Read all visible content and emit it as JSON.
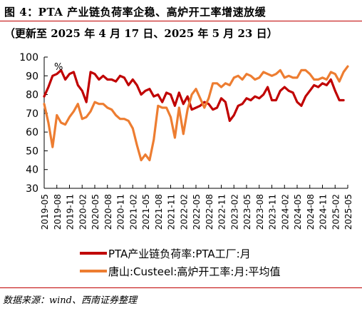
{
  "title": "图 4：PTA 产业链负荷率企稳、高炉开工率增速放缓",
  "subtitle": "（更新至 2025 年 4 月 17 日、2025 年 5 月 23 日）",
  "source": "数据来源：wind、西南证券整理",
  "colors": {
    "series1": "#c00000",
    "series2": "#ed7d31",
    "accent": "#c00000"
  },
  "chart_data": {
    "type": "line",
    "unit_label": "%",
    "ylim": [
      30,
      100
    ],
    "yticks": [
      30,
      40,
      50,
      60,
      70,
      80,
      90,
      100
    ],
    "x_start": "2019-05",
    "x_end": "2025-05",
    "xticks": [
      "2019-05",
      "2019-08",
      "2019-11",
      "2020-02",
      "2020-05",
      "2020-08",
      "2020-11",
      "2021-02",
      "2021-05",
      "2021-08",
      "2021-11",
      "2022-02",
      "2022-05",
      "2022-08",
      "2022-11",
      "2023-02",
      "2023-05",
      "2023-08",
      "2023-11",
      "2024-02",
      "2024-05",
      "2024-08",
      "2024-11",
      "2025-02",
      "2025-05"
    ],
    "grid": false,
    "legend_position": "bottom",
    "series": [
      {
        "name": "PTA产业链负荷率:PTA工厂:月",
        "color": "#c00000",
        "points": [
          [
            "2019-05",
            79
          ],
          [
            "2019-06",
            84
          ],
          [
            "2019-07",
            90
          ],
          [
            "2019-08",
            91
          ],
          [
            "2019-09",
            93
          ],
          [
            "2019-10",
            88
          ],
          [
            "2019-11",
            91
          ],
          [
            "2019-12",
            92
          ],
          [
            "2020-01",
            85
          ],
          [
            "2020-02",
            82
          ],
          [
            "2020-03",
            76
          ],
          [
            "2020-04",
            92
          ],
          [
            "2020-05",
            91
          ],
          [
            "2020-06",
            88
          ],
          [
            "2020-07",
            90
          ],
          [
            "2020-08",
            88
          ],
          [
            "2020-09",
            88
          ],
          [
            "2020-10",
            87
          ],
          [
            "2020-11",
            90
          ],
          [
            "2020-12",
            89
          ],
          [
            "2021-01",
            85
          ],
          [
            "2021-02",
            88
          ],
          [
            "2021-03",
            85
          ],
          [
            "2021-04",
            80
          ],
          [
            "2021-05",
            82
          ],
          [
            "2021-06",
            83
          ],
          [
            "2021-07",
            79
          ],
          [
            "2021-08",
            80
          ],
          [
            "2021-09",
            76
          ],
          [
            "2021-10",
            81
          ],
          [
            "2021-11",
            80
          ],
          [
            "2021-12",
            74
          ],
          [
            "2022-01",
            81
          ],
          [
            "2022-02",
            75
          ],
          [
            "2022-03",
            79
          ],
          [
            "2022-04",
            72
          ],
          [
            "2022-05",
            73
          ],
          [
            "2022-06",
            74
          ],
          [
            "2022-07",
            76
          ],
          [
            "2022-08",
            75
          ],
          [
            "2022-09",
            72
          ],
          [
            "2022-10",
            73
          ],
          [
            "2022-11",
            78
          ],
          [
            "2022-12",
            76
          ],
          [
            "2023-01",
            66
          ],
          [
            "2023-02",
            69
          ],
          [
            "2023-03",
            74
          ],
          [
            "2023-04",
            75
          ],
          [
            "2023-05",
            78
          ],
          [
            "2023-06",
            77
          ],
          [
            "2023-07",
            79
          ],
          [
            "2023-08",
            78
          ],
          [
            "2023-09",
            80
          ],
          [
            "2023-10",
            84
          ],
          [
            "2023-11",
            77
          ],
          [
            "2023-12",
            77
          ],
          [
            "2024-01",
            82
          ],
          [
            "2024-02",
            84
          ],
          [
            "2024-03",
            82
          ],
          [
            "2024-04",
            81
          ],
          [
            "2024-05",
            76
          ],
          [
            "2024-06",
            74
          ],
          [
            "2024-07",
            79
          ],
          [
            "2024-08",
            82
          ],
          [
            "2024-09",
            85
          ],
          [
            "2024-10",
            84
          ],
          [
            "2024-11",
            86
          ],
          [
            "2024-12",
            85
          ],
          [
            "2025-01",
            88
          ],
          [
            "2025-02",
            82
          ],
          [
            "2025-03",
            77
          ],
          [
            "2025-04",
            77
          ]
        ]
      },
      {
        "name": "唐山:Custeel:高炉开工率:月:平均值",
        "color": "#ed7d31",
        "points": [
          [
            "2019-05",
            75
          ],
          [
            "2019-06",
            65
          ],
          [
            "2019-07",
            52
          ],
          [
            "2019-08",
            69
          ],
          [
            "2019-09",
            65
          ],
          [
            "2019-10",
            64
          ],
          [
            "2019-11",
            68
          ],
          [
            "2019-12",
            71
          ],
          [
            "2020-01",
            75
          ],
          [
            "2020-02",
            67
          ],
          [
            "2020-03",
            68
          ],
          [
            "2020-04",
            71
          ],
          [
            "2020-05",
            76
          ],
          [
            "2020-06",
            75
          ],
          [
            "2020-07",
            75
          ],
          [
            "2020-08",
            73
          ],
          [
            "2020-09",
            72
          ],
          [
            "2020-10",
            69
          ],
          [
            "2020-11",
            67
          ],
          [
            "2020-12",
            67
          ],
          [
            "2021-01",
            66
          ],
          [
            "2021-02",
            62
          ],
          [
            "2021-03",
            53
          ],
          [
            "2021-04",
            45
          ],
          [
            "2021-05",
            48
          ],
          [
            "2021-06",
            45
          ],
          [
            "2021-07",
            56
          ],
          [
            "2021-08",
            74
          ],
          [
            "2021-09",
            73
          ],
          [
            "2021-10",
            73
          ],
          [
            "2021-11",
            68
          ],
          [
            "2021-12",
            57
          ],
          [
            "2022-01",
            73
          ],
          [
            "2022-02",
            59
          ],
          [
            "2022-03",
            72
          ],
          [
            "2022-04",
            80
          ],
          [
            "2022-05",
            83
          ],
          [
            "2022-06",
            78
          ],
          [
            "2022-07",
            73
          ],
          [
            "2022-08",
            78
          ],
          [
            "2022-09",
            86
          ],
          [
            "2022-10",
            86
          ],
          [
            "2022-11",
            84
          ],
          [
            "2022-12",
            86
          ],
          [
            "2023-01",
            85
          ],
          [
            "2023-02",
            89
          ],
          [
            "2023-03",
            90
          ],
          [
            "2023-04",
            88
          ],
          [
            "2023-05",
            91
          ],
          [
            "2023-06",
            90
          ],
          [
            "2023-07",
            88
          ],
          [
            "2023-08",
            89
          ],
          [
            "2023-09",
            92
          ],
          [
            "2023-10",
            91
          ],
          [
            "2023-11",
            90
          ],
          [
            "2023-12",
            91
          ],
          [
            "2024-01",
            93
          ],
          [
            "2024-02",
            89
          ],
          [
            "2024-03",
            90
          ],
          [
            "2024-04",
            89
          ],
          [
            "2024-05",
            89
          ],
          [
            "2024-06",
            93
          ],
          [
            "2024-07",
            93
          ],
          [
            "2024-08",
            91
          ],
          [
            "2024-09",
            88
          ],
          [
            "2024-10",
            88
          ],
          [
            "2024-11",
            89
          ],
          [
            "2024-12",
            88
          ],
          [
            "2025-01",
            92
          ],
          [
            "2025-02",
            91
          ],
          [
            "2025-03",
            87
          ],
          [
            "2025-04",
            92
          ],
          [
            "2025-05",
            95
          ]
        ]
      }
    ]
  }
}
